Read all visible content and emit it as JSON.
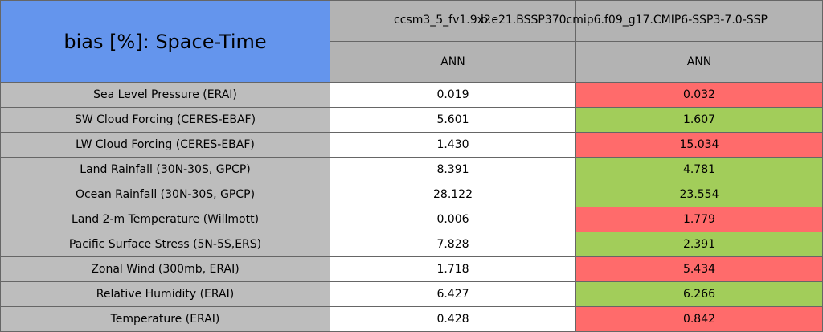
{
  "header": {
    "title": "bias [%]: Space-Time",
    "cases": [
      "ccsm3_5_fv1.9x2",
      "b.e21.BSSP370cmip6.f09_g17.CMIP6-SSP3-7.0-SSP"
    ],
    "seasons": [
      "ANN",
      "ANN"
    ]
  },
  "table": {
    "rows": [
      {
        "label": "Sea Level Pressure (ERAI)",
        "cells": [
          "0.019",
          "0.032"
        ],
        "colors": [
          "#ffffff",
          "#ff6b6b"
        ]
      },
      {
        "label": "SW Cloud Forcing (CERES-EBAF)",
        "cells": [
          "5.601",
          "1.607"
        ],
        "colors": [
          "#ffffff",
          "#a2cd5a"
        ]
      },
      {
        "label": "LW Cloud Forcing (CERES-EBAF)",
        "cells": [
          "1.430",
          "15.034"
        ],
        "colors": [
          "#ffffff",
          "#ff6b6b"
        ]
      },
      {
        "label": "Land Rainfall (30N-30S, GPCP)",
        "cells": [
          "8.391",
          "4.781"
        ],
        "colors": [
          "#ffffff",
          "#a2cd5a"
        ]
      },
      {
        "label": "Ocean Rainfall (30N-30S, GPCP)",
        "cells": [
          "28.122",
          "23.554"
        ],
        "colors": [
          "#ffffff",
          "#a2cd5a"
        ]
      },
      {
        "label": "Land 2-m Temperature (Willmott)",
        "cells": [
          "0.006",
          "1.779"
        ],
        "colors": [
          "#ffffff",
          "#ff6b6b"
        ]
      },
      {
        "label": "Pacific Surface Stress (5N-5S,ERS)",
        "cells": [
          "7.828",
          "2.391"
        ],
        "colors": [
          "#ffffff",
          "#a2cd5a"
        ]
      },
      {
        "label": "Zonal Wind (300mb, ERAI)",
        "cells": [
          "1.718",
          "5.434"
        ],
        "colors": [
          "#ffffff",
          "#ff6b6b"
        ]
      },
      {
        "label": "Relative Humidity (ERAI)",
        "cells": [
          "6.427",
          "6.266"
        ],
        "colors": [
          "#ffffff",
          "#a2cd5a"
        ]
      },
      {
        "label": "Temperature (ERAI)",
        "cells": [
          "0.428",
          "0.842"
        ],
        "colors": [
          "#ffffff",
          "#ff6b6b"
        ]
      }
    ]
  }
}
